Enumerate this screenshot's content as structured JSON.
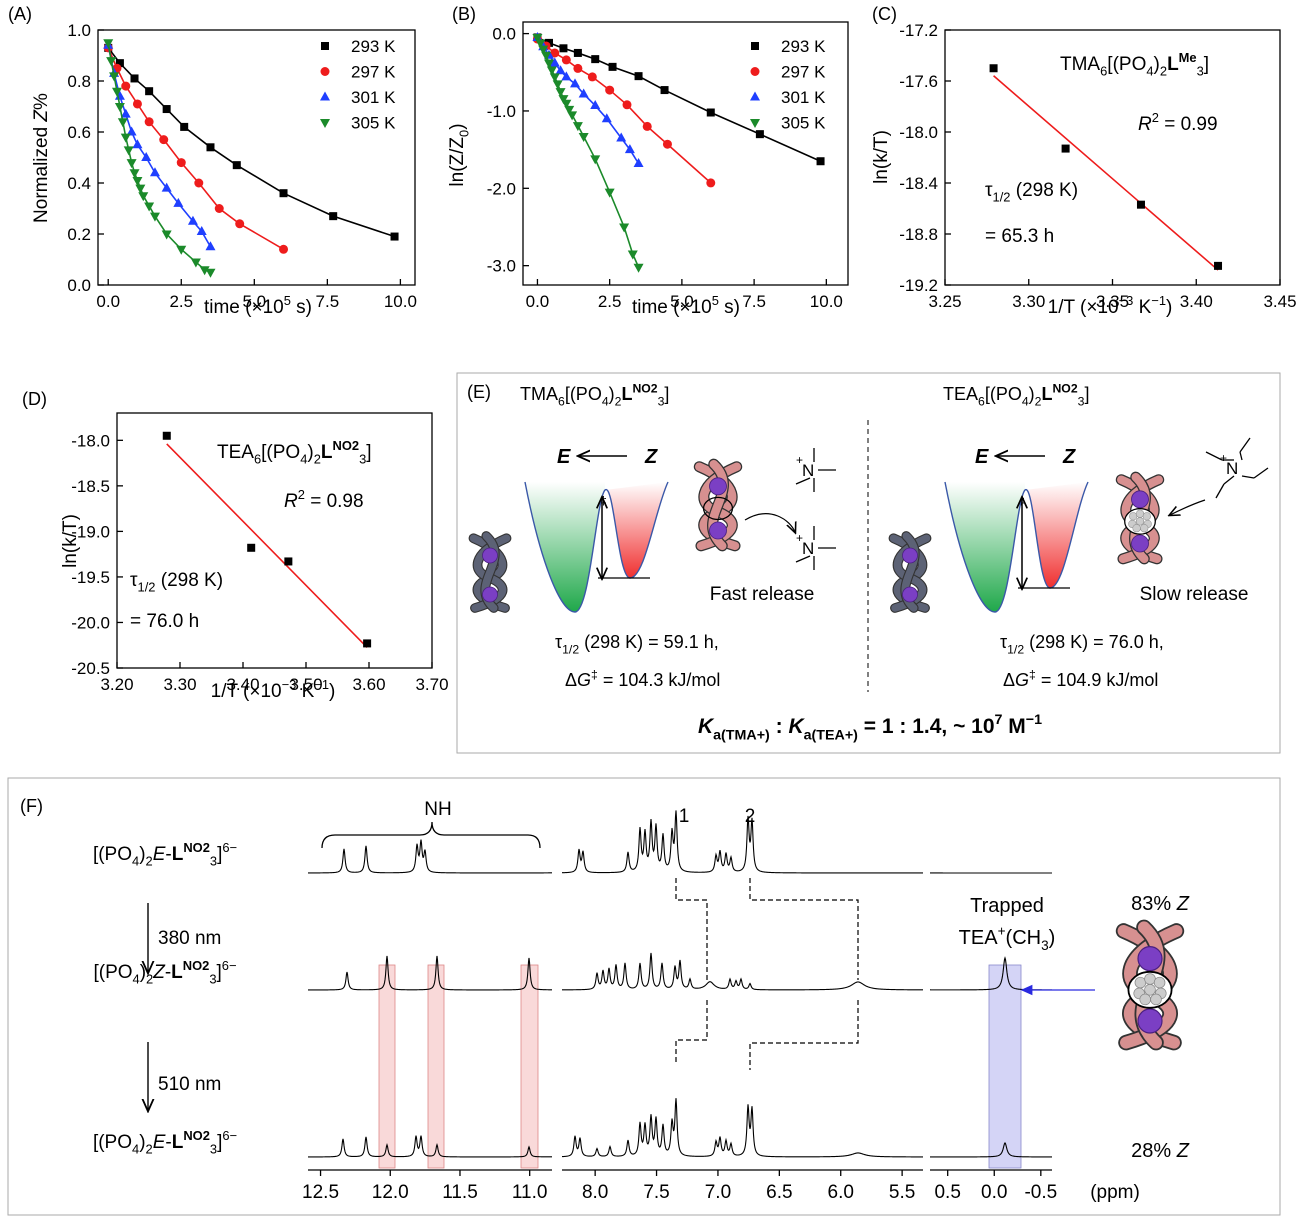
{
  "chart_data": [
    {
      "type": "line",
      "panel_label": "(A)",
      "xlabel": [
        "time (×10",
        "5",
        " s)"
      ],
      "ylabel": [
        "Normalized ",
        "Z",
        "%"
      ],
      "xlim": [
        -0.35,
        10.5
      ],
      "ylim": [
        0,
        1
      ],
      "xticks": [
        {
          "value": 0,
          "label": "0.0"
        },
        2.5,
        {
          "value": 5,
          "label": "5.0"
        },
        7.5,
        {
          "value": 10,
          "label": "10.0"
        }
      ],
      "yticks": [
        {
          "value": 0,
          "label": "0.0"
        },
        0.2,
        0.4,
        0.6,
        0.8,
        {
          "value": 1,
          "label": "1.0"
        }
      ],
      "legend": "upper right",
      "series": [
        {
          "name": "293 K",
          "color": "#000000",
          "marker": "square",
          "x": [
            0,
            0.4,
            0.9,
            1.4,
            2.0,
            2.6,
            3.5,
            4.4,
            6.0,
            7.7,
            9.8
          ],
          "values": [
            0.93,
            0.87,
            0.81,
            0.76,
            0.69,
            0.62,
            0.54,
            0.47,
            0.36,
            0.27,
            0.19
          ]
        },
        {
          "name": "297 K",
          "color": "#ee1c1c",
          "marker": "circle",
          "x": [
            0,
            0.3,
            0.6,
            1.0,
            1.4,
            1.9,
            2.5,
            3.1,
            3.8,
            4.5,
            6.0
          ],
          "values": [
            0.93,
            0.85,
            0.78,
            0.71,
            0.64,
            0.57,
            0.48,
            0.4,
            0.3,
            0.24,
            0.14
          ]
        },
        {
          "name": "301 K",
          "color": "#1f3fff",
          "marker": "triangle-up",
          "x": [
            0,
            0.2,
            0.4,
            0.6,
            0.8,
            1.0,
            1.3,
            1.6,
            2.0,
            2.4,
            2.9,
            3.2,
            3.5
          ],
          "values": [
            0.94,
            0.83,
            0.74,
            0.67,
            0.6,
            0.55,
            0.5,
            0.44,
            0.38,
            0.32,
            0.25,
            0.21,
            0.15
          ]
        },
        {
          "name": "305 K",
          "color": "#1b8a2a",
          "marker": "triangle-down",
          "x": [
            0,
            0.1,
            0.2,
            0.3,
            0.4,
            0.5,
            0.6,
            0.7,
            0.8,
            0.9,
            1.0,
            1.1,
            1.2,
            1.4,
            1.6,
            2.0,
            2.5,
            3.0,
            3.3,
            3.5
          ],
          "values": [
            0.95,
            0.88,
            0.82,
            0.76,
            0.7,
            0.64,
            0.58,
            0.53,
            0.48,
            0.44,
            0.41,
            0.38,
            0.35,
            0.31,
            0.27,
            0.2,
            0.14,
            0.09,
            0.06,
            0.05
          ]
        }
      ]
    },
    {
      "type": "line",
      "panel_label": "(B)",
      "xlabel": [
        "time (×10",
        "5",
        " s)"
      ],
      "ylabel": [
        "ln(Z/Z",
        "0",
        ")"
      ],
      "xlim": [
        -0.5,
        10.75
      ],
      "ylim": [
        -3.25,
        0.15
      ],
      "xticks": [
        {
          "value": 0,
          "label": "0.0"
        },
        2.5,
        {
          "value": 5,
          "label": "5.0"
        },
        7.5,
        {
          "value": 10,
          "label": "10.0"
        }
      ],
      "yticks": [
        {
          "value": -3,
          "label": "-3.0"
        },
        {
          "value": -2,
          "label": "-2.0"
        },
        {
          "value": -1,
          "label": "-1.0"
        },
        {
          "value": 0,
          "label": "0.0"
        }
      ],
      "legend": "upper right",
      "series": [
        {
          "name": "293 K",
          "color": "#000000",
          "marker": "square",
          "x": [
            0,
            0.4,
            0.9,
            1.4,
            2.0,
            2.6,
            3.5,
            4.4,
            6.0,
            7.7,
            9.8
          ],
          "values": [
            -0.05,
            -0.12,
            -0.19,
            -0.25,
            -0.33,
            -0.43,
            -0.55,
            -0.73,
            -1.02,
            -1.3,
            -1.65
          ]
        },
        {
          "name": "297 K",
          "color": "#ee1c1c",
          "marker": "circle",
          "x": [
            0,
            0.3,
            0.6,
            1.0,
            1.4,
            1.9,
            2.5,
            3.1,
            3.8,
            4.5,
            6.0
          ],
          "values": [
            -0.07,
            -0.16,
            -0.25,
            -0.34,
            -0.45,
            -0.56,
            -0.73,
            -0.92,
            -1.2,
            -1.43,
            -1.93
          ]
        },
        {
          "name": "301 K",
          "color": "#1f3fff",
          "marker": "triangle-up",
          "x": [
            0,
            0.2,
            0.4,
            0.6,
            0.8,
            1.0,
            1.3,
            1.6,
            2.0,
            2.4,
            2.9,
            3.2,
            3.5
          ],
          "values": [
            -0.05,
            -0.17,
            -0.28,
            -0.38,
            -0.48,
            -0.56,
            -0.65,
            -0.78,
            -0.93,
            -1.1,
            -1.35,
            -1.5,
            -1.68
          ]
        },
        {
          "name": "305 K",
          "color": "#1b8a2a",
          "marker": "triangle-down",
          "x": [
            0,
            0.1,
            0.2,
            0.3,
            0.4,
            0.5,
            0.6,
            0.7,
            0.8,
            0.9,
            1.0,
            1.1,
            1.2,
            1.4,
            1.6,
            2.0,
            2.5,
            3.0,
            3.3,
            3.5
          ],
          "values": [
            -0.05,
            -0.12,
            -0.2,
            -0.28,
            -0.38,
            -0.47,
            -0.56,
            -0.65,
            -0.75,
            -0.84,
            -0.9,
            -0.98,
            -1.05,
            -1.19,
            -1.33,
            -1.62,
            -2.05,
            -2.5,
            -2.85,
            -3.02
          ]
        }
      ]
    },
    {
      "type": "scatter",
      "panel_label": "(C)",
      "xlabel": [
        "1/T (×10",
        "−3",
        " K",
        "−1",
        ")"
      ],
      "ylabel": "ln(k/T)",
      "xlim": [
        3.25,
        3.45
      ],
      "ylim": [
        -19.2,
        -17.2
      ],
      "xticks": [
        3.25,
        {
          "value": 3.3,
          "label": "3.30"
        },
        3.35,
        {
          "value": 3.4,
          "label": "3.40"
        },
        3.45
      ],
      "yticks": [
        -19.2,
        -18.8,
        -18.4,
        {
          "value": -18,
          "label": "-18.0"
        },
        -17.6,
        -17.2
      ],
      "color": "#000000",
      "fit_color": "#ee1c1c",
      "x": [
        3.279,
        3.322,
        3.367,
        3.413
      ],
      "values": [
        -17.5,
        -18.13,
        -18.57,
        -19.05
      ],
      "annotations": {
        "compound": [
          "TMA",
          "6",
          "[(PO",
          "4",
          ")",
          "2",
          "L",
          "Me",
          "3",
          "]"
        ],
        "r2": [
          "R",
          "2",
          " = 0.99"
        ],
        "tau": [
          "τ",
          "1/2",
          " (298 K)"
        ],
        "half_life": "= 65.3 h"
      }
    },
    {
      "type": "scatter",
      "panel_label": "(D)",
      "xlabel": [
        "1/T (×10",
        "−3",
        " K",
        "−1",
        ")"
      ],
      "ylabel": "ln(k/T)",
      "xlim": [
        3.2,
        3.7
      ],
      "ylim": [
        -20.5,
        -17.7
      ],
      "xticks": [
        {
          "value": 3.2,
          "label": "3.20"
        },
        {
          "value": 3.3,
          "label": "3.30"
        },
        {
          "value": 3.4,
          "label": "3.40"
        },
        {
          "value": 3.5,
          "label": "3.50"
        },
        {
          "value": 3.6,
          "label": "3.60"
        },
        {
          "value": 3.7,
          "label": "3.70"
        }
      ],
      "yticks": [
        -20.5,
        {
          "value": -20,
          "label": "-20.0"
        },
        -19.5,
        {
          "value": -19,
          "label": "-19.0"
        },
        -18.5,
        {
          "value": -18,
          "label": "-18.0"
        }
      ],
      "color": "#000000",
      "fit_color": "#ee1c1c",
      "x": [
        3.279,
        3.413,
        3.472,
        3.597
      ],
      "values": [
        -17.95,
        -19.18,
        -19.33,
        -20.23
      ],
      "annotations": {
        "compound": [
          "TEA",
          "6",
          "[(PO",
          "4",
          ")",
          "2",
          "L",
          "NO2",
          "3",
          "]"
        ],
        "r2": [
          "R",
          "2",
          " = 0.98"
        ],
        "tau": [
          "τ",
          "1/2",
          " (298 K)"
        ],
        "half_life": "= 76.0 h"
      }
    }
  ],
  "panel_e": {
    "label": "(E)",
    "left_title": [
      "TMA",
      "6",
      "[(PO",
      "4",
      ")",
      "2",
      "L",
      "NO2",
      "3",
      "]"
    ],
    "right_title": [
      "TEA",
      "6",
      "[(PO",
      "4",
      ")",
      "2",
      "L",
      "NO2",
      "3",
      "]"
    ],
    "scheme": [
      "E",
      "Z"
    ],
    "barrier": [
      "Δ",
      "G",
      "‡"
    ],
    "cation": [
      "+",
      "N"
    ],
    "left_release": "Fast release",
    "right_release": "Slow release",
    "left_tau": [
      "τ",
      "1/2",
      " (298 K) = 59.1 h,"
    ],
    "left_dg": [
      "Δ",
      "G",
      "‡",
      " = 104.3 kJ/mol"
    ],
    "right_tau": [
      "τ",
      "1/2",
      " (298 K) = 76.0 h,"
    ],
    "right_dg": [
      "Δ",
      "G",
      "‡",
      " = 104.9 kJ/mol"
    ],
    "summary": [
      "K",
      "a(TMA+)",
      " : ",
      "K",
      "a(TEA+)",
      " = 1 : 1.4,   ~ 10",
      "7",
      " M",
      "−1"
    ]
  },
  "panel_f": {
    "label": "(F)",
    "rows": [
      [
        "[(PO",
        "4",
        ")",
        "2",
        "E",
        "-",
        "L",
        "NO2",
        "3",
        "]",
        "6−"
      ],
      [
        "[(PO",
        "4",
        ")",
        "2",
        "Z",
        "-",
        "L",
        "NO2",
        "3",
        "]",
        "6−"
      ],
      [
        "[(PO",
        "4",
        ")",
        "2",
        "E",
        "-",
        "L",
        "NO2",
        "3",
        "]",
        "6−"
      ]
    ],
    "wavelengths": [
      "380 nm",
      "510 nm"
    ],
    "nh": "NH",
    "peak_labels": [
      "1",
      "2"
    ],
    "trapped": "Trapped",
    "guest": [
      "TEA",
      "+",
      "(CH",
      "3",
      ")"
    ],
    "percent_top": [
      "83% ",
      "Z"
    ],
    "percent_bottom": [
      "28% ",
      "Z"
    ],
    "unit": "(ppm)",
    "axes": [
      {
        "xlim": [
          12.59,
          10.84
        ],
        "xticks": [
          12.5,
          {
            "value": 12,
            "label": "12.0"
          },
          11.5,
          {
            "value": 11,
            "label": "11.0"
          }
        ]
      },
      {
        "xlim": [
          8.27,
          5.33
        ],
        "xticks": [
          {
            "value": 8,
            "label": "8.0"
          },
          7.5,
          {
            "value": 7,
            "label": "7.0"
          },
          6.5,
          {
            "value": 6,
            "label": "6.0"
          },
          5.5
        ]
      },
      {
        "xlim": [
          0.69,
          -0.62
        ],
        "xticks": [
          0.5,
          {
            "value": 0,
            "label": "0.0"
          },
          -0.5
        ]
      }
    ]
  }
}
